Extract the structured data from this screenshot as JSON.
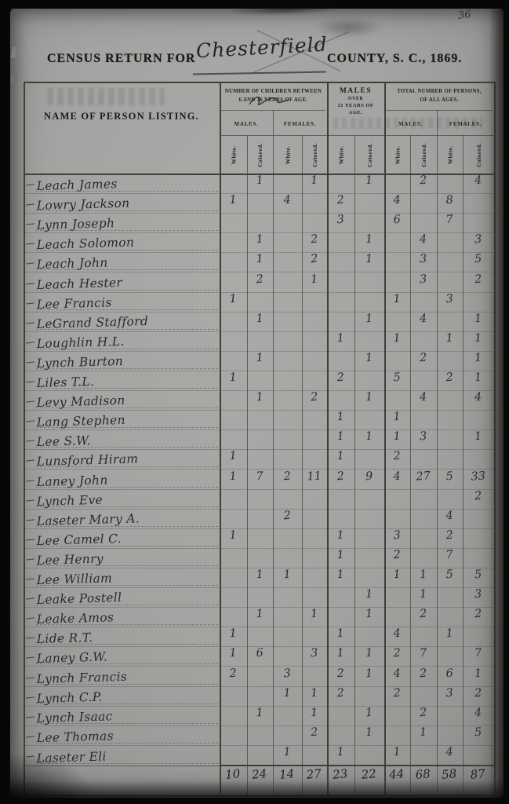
{
  "page_number": "36",
  "title": {
    "prefix": "CENSUS RETURN FOR",
    "county": "Chesterfield",
    "suffix": "COUNTY, S. C., 1869."
  },
  "table": {
    "name_header": "NAME OF PERSON LISTING.",
    "children_group": {
      "line1": "NUMBER OF CHILDREN BETWEEN",
      "line2": "6 AND 16 YEARS OF AGE."
    },
    "males21_group": {
      "line1": "MALES",
      "line2": "OVER",
      "line3": "21 YEARS OF",
      "line4": "AGE."
    },
    "total_group": {
      "line1": "TOTAL NUMBER OF PERSONS,",
      "line2": "OF ALL AGES."
    },
    "sub_headers": [
      "MALES.",
      "FEMALES.",
      "MALES.",
      "FEMALES."
    ],
    "race_headers": [
      "White.",
      "Colored.",
      "White.",
      "Colored.",
      "White.",
      "Colored.",
      "White.",
      "Colored.",
      "White.",
      "Colored."
    ],
    "rows": [
      {
        "name": "Leach James",
        "values": [
          "",
          "1",
          "",
          "1",
          "",
          "1",
          "",
          "2",
          "",
          "4"
        ]
      },
      {
        "name": "Lowry Jackson",
        "values": [
          "1",
          "",
          "4",
          "",
          "2",
          "",
          "4",
          "",
          "8",
          ""
        ]
      },
      {
        "name": "Lynn Joseph",
        "values": [
          "",
          "",
          "",
          "",
          "3",
          "",
          "6",
          "",
          "7",
          ""
        ]
      },
      {
        "name": "Leach Solomon",
        "values": [
          "",
          "1",
          "",
          "2",
          "",
          "1",
          "",
          "4",
          "",
          "3"
        ]
      },
      {
        "name": "Leach John",
        "values": [
          "",
          "1",
          "",
          "2",
          "",
          "1",
          "",
          "3",
          "",
          "5"
        ]
      },
      {
        "name": "Leach Hester",
        "values": [
          "",
          "2",
          "",
          "1",
          "",
          "",
          "",
          "3",
          "",
          "2"
        ]
      },
      {
        "name": "Lee Francis",
        "values": [
          "1",
          "",
          "",
          "",
          "",
          "",
          "1",
          "",
          "3",
          ""
        ]
      },
      {
        "name": "LeGrand Stafford",
        "values": [
          "",
          "1",
          "",
          "",
          "",
          "1",
          "",
          "4",
          "",
          "1"
        ]
      },
      {
        "name": "Loughlin H.L.",
        "values": [
          "",
          "",
          "",
          "",
          "1",
          "",
          "1",
          "",
          "1",
          "1"
        ]
      },
      {
        "name": "Lynch Burton",
        "values": [
          "",
          "1",
          "",
          "",
          "",
          "1",
          "",
          "2",
          "",
          "1"
        ]
      },
      {
        "name": "Liles T.L.",
        "values": [
          "1",
          "",
          "",
          "",
          "2",
          "",
          "5",
          "",
          "2",
          "1"
        ]
      },
      {
        "name": "Levy Madison",
        "values": [
          "",
          "1",
          "",
          "2",
          "",
          "1",
          "",
          "4",
          "",
          "4"
        ]
      },
      {
        "name": "Lang Stephen",
        "values": [
          "",
          "",
          "",
          "",
          "1",
          "",
          "1",
          "",
          "",
          ""
        ]
      },
      {
        "name": "Lee S.W.",
        "values": [
          "",
          "",
          "",
          "",
          "1",
          "1",
          "1",
          "3",
          "",
          "1"
        ]
      },
      {
        "name": "Lunsford Hiram",
        "values": [
          "1",
          "",
          "",
          "",
          "1",
          "",
          "2",
          "",
          "",
          ""
        ]
      },
      {
        "name": "Laney John",
        "values": [
          "1",
          "7",
          "2",
          "11",
          "2",
          "9",
          "4",
          "27",
          "5",
          "33"
        ]
      },
      {
        "name": "Lynch Eve",
        "values": [
          "",
          "",
          "",
          "",
          "",
          "",
          "",
          "",
          "",
          "2"
        ]
      },
      {
        "name": "Laseter Mary A.",
        "values": [
          "",
          "",
          "2",
          "",
          "",
          "",
          "",
          "",
          "4",
          ""
        ]
      },
      {
        "name": "Lee Camel C.",
        "values": [
          "1",
          "",
          "",
          "",
          "1",
          "",
          "3",
          "",
          "2",
          ""
        ]
      },
      {
        "name": "Lee Henry",
        "values": [
          "",
          "",
          "",
          "",
          "1",
          "",
          "2",
          "",
          "7",
          ""
        ]
      },
      {
        "name": "Lee William",
        "values": [
          "",
          "1",
          "1",
          "",
          "1",
          "",
          "1",
          "1",
          "5",
          "5"
        ]
      },
      {
        "name": "Leake Postell",
        "values": [
          "",
          "",
          "",
          "",
          "",
          "1",
          "",
          "1",
          "",
          "3"
        ]
      },
      {
        "name": "Leake Amos",
        "values": [
          "",
          "1",
          "",
          "1",
          "",
          "1",
          "",
          "2",
          "",
          "2"
        ]
      },
      {
        "name": "Lide R.T.",
        "values": [
          "1",
          "",
          "",
          "",
          "1",
          "",
          "4",
          "",
          "1",
          ""
        ]
      },
      {
        "name": "Laney G.W.",
        "values": [
          "1",
          "6",
          "",
          "3",
          "1",
          "1",
          "2",
          "7",
          "",
          "7"
        ]
      },
      {
        "name": "Lynch Francis",
        "values": [
          "2",
          "",
          "3",
          "",
          "2",
          "1",
          "4",
          "2",
          "6",
          "1"
        ]
      },
      {
        "name": "Lynch C.P.",
        "values": [
          "",
          "",
          "1",
          "1",
          "2",
          "",
          "2",
          "",
          "3",
          "2"
        ]
      },
      {
        "name": "Lynch Isaac",
        "values": [
          "",
          "1",
          "",
          "1",
          "",
          "1",
          "",
          "2",
          "",
          "4"
        ]
      },
      {
        "name": "Lee Thomas",
        "values": [
          "",
          "",
          "",
          "2",
          "",
          "1",
          "",
          "1",
          "",
          "5"
        ]
      },
      {
        "name": "Laseter Eli",
        "values": [
          "",
          "",
          "1",
          "",
          "1",
          "",
          "1",
          "",
          "4",
          ""
        ]
      }
    ],
    "totals": [
      "10",
      "24",
      "14",
      "27",
      "23",
      "22",
      "44",
      "68",
      "58",
      "87"
    ]
  }
}
